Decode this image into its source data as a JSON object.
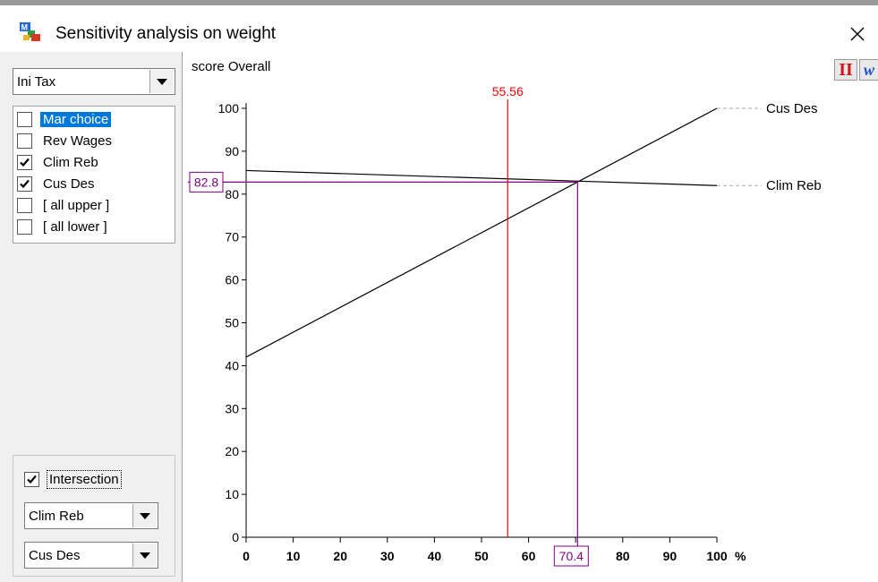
{
  "window": {
    "title": "Sensitivity analysis on weight",
    "icon": "app-logo-icon",
    "close_icon": "close-icon"
  },
  "left_panel": {
    "criterion_dropdown": {
      "value": "Ini Tax"
    },
    "alternatives": [
      {
        "label": "Mar choice",
        "checked": false,
        "selected": true
      },
      {
        "label": "Rev Wages",
        "checked": false,
        "selected": false
      },
      {
        "label": "Clim Reb",
        "checked": true,
        "selected": false
      },
      {
        "label": "Cus Des",
        "checked": true,
        "selected": false
      },
      {
        "label": "[ all upper ]",
        "checked": false,
        "selected": false
      },
      {
        "label": "[ all lower ]",
        "checked": false,
        "selected": false
      }
    ],
    "intersection": {
      "label": "Intersection",
      "checked": true
    },
    "intersection_first": {
      "value": "Clim Reb"
    },
    "intersection_second": {
      "value": "Cus Des"
    }
  },
  "toolbar": {
    "button1_label": "II",
    "button2_label": "w"
  },
  "chart_data": {
    "type": "line",
    "ylabel": "score Overall",
    "xunit": "%",
    "xlim": [
      0,
      100
    ],
    "ylim": [
      0,
      100
    ],
    "xticks": [
      0,
      10,
      20,
      30,
      40,
      50,
      60,
      70,
      80,
      90,
      100
    ],
    "xtick_labels": [
      "0",
      "10",
      "20",
      "30",
      "40",
      "50",
      "60",
      "70",
      "80",
      "90",
      "100"
    ],
    "yticks": [
      0,
      10,
      20,
      30,
      40,
      50,
      60,
      70,
      80,
      90,
      100
    ],
    "ytick_labels": [
      "0",
      "10",
      "20",
      "30",
      "40",
      "50",
      "60",
      "70",
      "80",
      "90",
      "100"
    ],
    "series": [
      {
        "name": "Cus Des",
        "x": [
          0,
          100
        ],
        "y": [
          42,
          100
        ],
        "color": "#000000"
      },
      {
        "name": "Clim Reb",
        "x": [
          0,
          100
        ],
        "y": [
          85.5,
          82
        ],
        "color": "#000000"
      }
    ],
    "current_weight": {
      "x": 55.56,
      "label": "55.56",
      "color": "#ff0000"
    },
    "intersection": {
      "x": 70.4,
      "y": 82.8,
      "x_label": "70.4",
      "y_label": "82.8",
      "color": "#800080"
    },
    "grid": false
  }
}
